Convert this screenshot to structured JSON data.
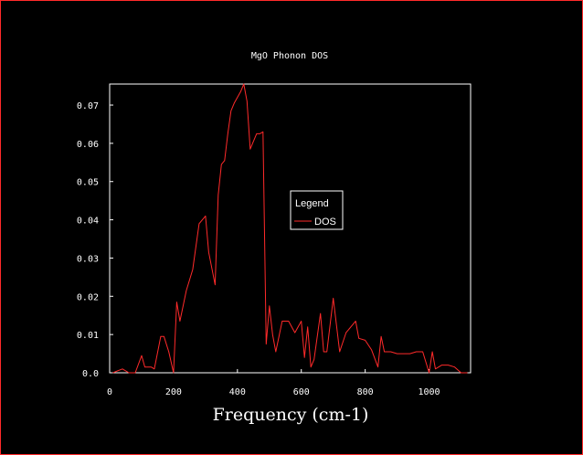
{
  "chart_data": {
    "type": "line",
    "title": "MgO Phonon DOS",
    "xlabel": "Frequency (cm-1)",
    "ylabel": "",
    "xlim": [
      0,
      1130
    ],
    "ylim": [
      0,
      0.0755
    ],
    "xticks": [
      0,
      200,
      400,
      600,
      800,
      1000
    ],
    "yticks": [
      0.0,
      0.01,
      0.02,
      0.03,
      0.04,
      0.05,
      0.06,
      0.07
    ],
    "ytick_labels": [
      "0.0",
      "0.01",
      "0.02",
      "0.03",
      "0.04",
      "0.05",
      "0.06",
      "0.07"
    ],
    "grid": false,
    "legend": {
      "title": "Legend",
      "position": "center-right"
    },
    "series": [
      {
        "name": "DOS",
        "color": "#ff2a2a",
        "x": [
          10,
          40,
          60,
          80,
          100,
          110,
          130,
          140,
          160,
          170,
          185,
          200,
          210,
          220,
          240,
          260,
          280,
          300,
          310,
          330,
          340,
          350,
          360,
          370,
          380,
          390,
          400,
          410,
          420,
          430,
          440,
          450,
          460,
          470,
          480,
          490,
          500,
          510,
          520,
          540,
          560,
          580,
          600,
          610,
          620,
          630,
          640,
          660,
          670,
          680,
          700,
          710,
          720,
          740,
          760,
          770,
          780,
          800,
          820,
          840,
          850,
          860,
          870,
          880,
          900,
          920,
          940,
          960,
          980,
          1000,
          1010,
          1020,
          1040,
          1060,
          1080,
          1100,
          1120
        ],
        "values": [
          0.0,
          0.001,
          0.0,
          0.0,
          0.0045,
          0.0015,
          0.0015,
          0.001,
          0.0095,
          0.0095,
          0.0055,
          0.0,
          0.0185,
          0.0135,
          0.0215,
          0.027,
          0.039,
          0.041,
          0.0315,
          0.023,
          0.0465,
          0.0545,
          0.0555,
          0.0625,
          0.0685,
          0.0705,
          0.072,
          0.0735,
          0.0755,
          0.071,
          0.0585,
          0.0605,
          0.0625,
          0.0625,
          0.063,
          0.0075,
          0.0175,
          0.01,
          0.0055,
          0.0135,
          0.0135,
          0.0105,
          0.0135,
          0.004,
          0.012,
          0.0015,
          0.0035,
          0.0155,
          0.0055,
          0.0055,
          0.0195,
          0.0125,
          0.0055,
          0.0105,
          0.0125,
          0.0135,
          0.009,
          0.0085,
          0.006,
          0.0015,
          0.0095,
          0.0055,
          0.0055,
          0.0055,
          0.005,
          0.005,
          0.005,
          0.0055,
          0.0055,
          0.0,
          0.0055,
          0.001,
          0.002,
          0.002,
          0.0015,
          0.0,
          0.0
        ]
      }
    ]
  }
}
